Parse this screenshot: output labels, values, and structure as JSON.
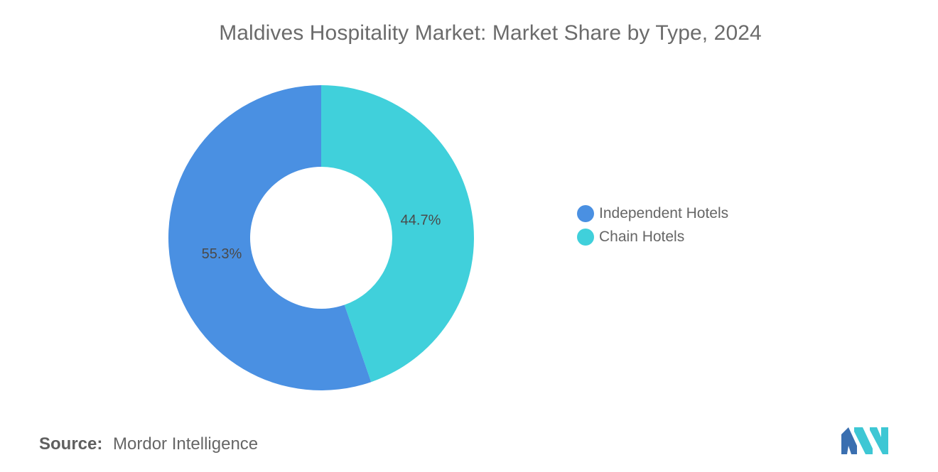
{
  "chart_data": {
    "type": "pie",
    "variant": "donut",
    "title": "Maldives Hospitality Market: Market Share by Type, 2024",
    "slices": [
      {
        "label": "Independent Hotels",
        "value": 55.3,
        "display": "55.3%",
        "color": "#4a90e2"
      },
      {
        "label": "Chain Hotels",
        "value": 44.7,
        "display": "44.7%",
        "color": "#40d0db"
      }
    ],
    "legend_position": "right"
  },
  "source": {
    "label": "Source:",
    "text": "Mordor Intelligence"
  },
  "logo": {
    "icon": "mordor-intelligence-logo-icon",
    "colors": [
      "#3a6fb0",
      "#3ec7d4"
    ]
  }
}
